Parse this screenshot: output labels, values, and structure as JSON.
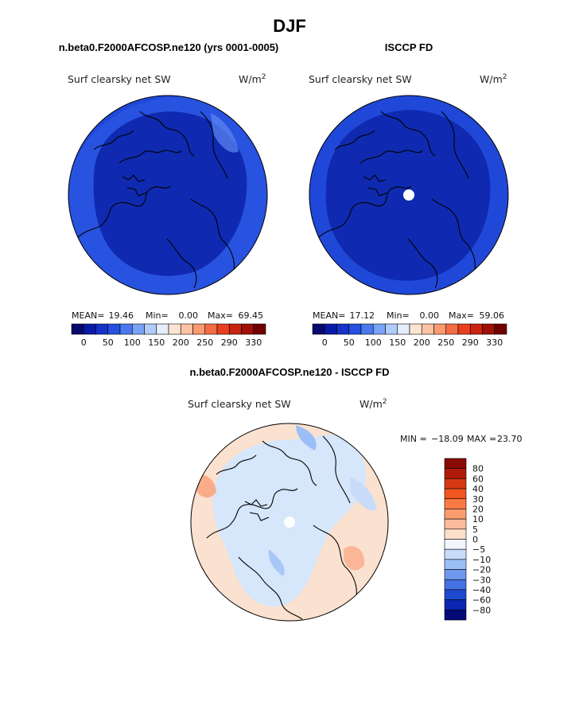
{
  "figure": {
    "season": "DJF",
    "colors": {
      "dark_blue": "#0b24a0",
      "mid_blue": "#1636c8",
      "land_blue": "#0f2ab0",
      "ocean_blue": "#2048d8",
      "light_blue": "#d6e6fb",
      "light_peach": "#fbe1cf",
      "coast": "#000000"
    }
  },
  "chart_data": [
    {
      "type": "heatmap",
      "title": "n.beta0.F2000AFCOSP.ne120 (yrs 0001-0005)",
      "variable": "Surf clearsky net SW",
      "units_base": "W/m",
      "units_exp": "2",
      "stats": {
        "mean_label": "MEAN=",
        "mean": "19.46",
        "min_label": "Min=",
        "min": "0.00",
        "max_label": "Max=",
        "max": "69.45"
      },
      "colorbar": {
        "tick_labels": [
          "0",
          "50",
          "100",
          "150",
          "200",
          "250",
          "290",
          "330"
        ],
        "colors": [
          "#08086e",
          "#0b1aa6",
          "#1632c8",
          "#2550e0",
          "#4a78ee",
          "#7aa2f6",
          "#b0ccfa",
          "#e4eefc",
          "#fde4d2",
          "#fcc4a4",
          "#fa9a70",
          "#f46c44",
          "#e8401e",
          "#c82410",
          "#a01006",
          "#700000"
        ]
      }
    },
    {
      "type": "heatmap",
      "title": "ISCCP FD",
      "variable": "Surf clearsky net SW",
      "units_base": "W/m",
      "units_exp": "2",
      "stats": {
        "mean_label": "MEAN=",
        "mean": "17.12",
        "min_label": "Min=",
        "min": "0.00",
        "max_label": "Max=",
        "max": "59.06"
      },
      "colorbar": {
        "tick_labels": [
          "0",
          "50",
          "100",
          "150",
          "200",
          "250",
          "290",
          "330"
        ],
        "colors": [
          "#08086e",
          "#0b1aa6",
          "#1632c8",
          "#2550e0",
          "#4a78ee",
          "#7aa2f6",
          "#b0ccfa",
          "#e4eefc",
          "#fde4d2",
          "#fcc4a4",
          "#fa9a70",
          "#f46c44",
          "#e8401e",
          "#c82410",
          "#a01006",
          "#700000"
        ]
      }
    },
    {
      "type": "heatmap",
      "title": "n.beta0.F2000AFCOSP.ne120 - ISCCP FD",
      "variable": "Surf clearsky net SW",
      "units_base": "W/m",
      "units_exp": "2",
      "stats": {
        "min_label": "MIN =",
        "min": "−18.09",
        "max_label": "MAX =",
        "max": "23.70"
      },
      "colorbar": {
        "tick_labels": [
          "80",
          "60",
          "40",
          "30",
          "20",
          "10",
          "5",
          "0",
          "−5",
          "−10",
          "−20",
          "−30",
          "−40",
          "−60",
          "−80"
        ],
        "colors": [
          "#8a0a06",
          "#b01a08",
          "#d83812",
          "#f0561e",
          "#fa7a44",
          "#fb9c70",
          "#fcbc9c",
          "#fde0cc",
          "#f2f6fc",
          "#c8dcfa",
          "#9cbef6",
          "#6e98ee",
          "#4472e2",
          "#1e4ad2",
          "#0a26b0",
          "#040a78"
        ]
      }
    }
  ]
}
